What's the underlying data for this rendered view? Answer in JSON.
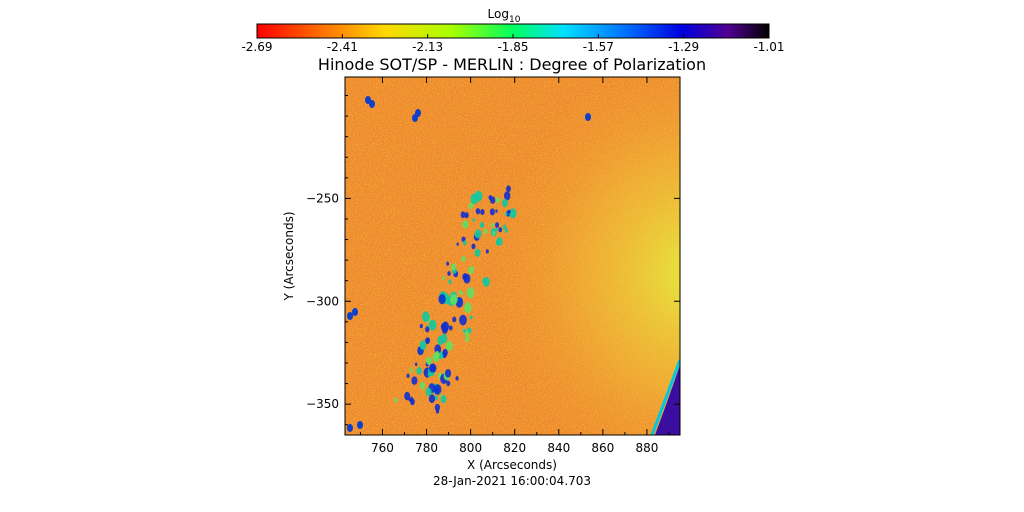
{
  "chart_data": {
    "type": "heatmap",
    "title": "Hinode SOT/SP - MERLIN : Degree of Polarization",
    "xlabel": "X (Arcseconds)",
    "ylabel": "Y (Arcseconds)",
    "footer": "28-Jan-2021 16:00:04.703",
    "xlim": [
      743,
      895
    ],
    "ylim": [
      -365,
      -191
    ],
    "x_ticks": [
      760,
      780,
      800,
      820,
      840,
      860,
      880
    ],
    "y_ticks": [
      -250,
      -300,
      -350
    ],
    "colorbar": {
      "label_base": "Log",
      "label_sub": "10",
      "min": -2.69,
      "max": -1.01,
      "ticks": [
        "-2.69",
        "-2.41",
        "-2.13",
        "-1.85",
        "-1.57",
        "-1.29",
        "-1.01"
      ],
      "colormap": "rainbow (red-yellow-green-cyan-blue-violet-black)"
    },
    "grid": false
  },
  "colors": {
    "background": "#ffffff",
    "field_base": "#f0a030",
    "field_quiet": "#e57024",
    "limb_region": "#d8e040"
  }
}
